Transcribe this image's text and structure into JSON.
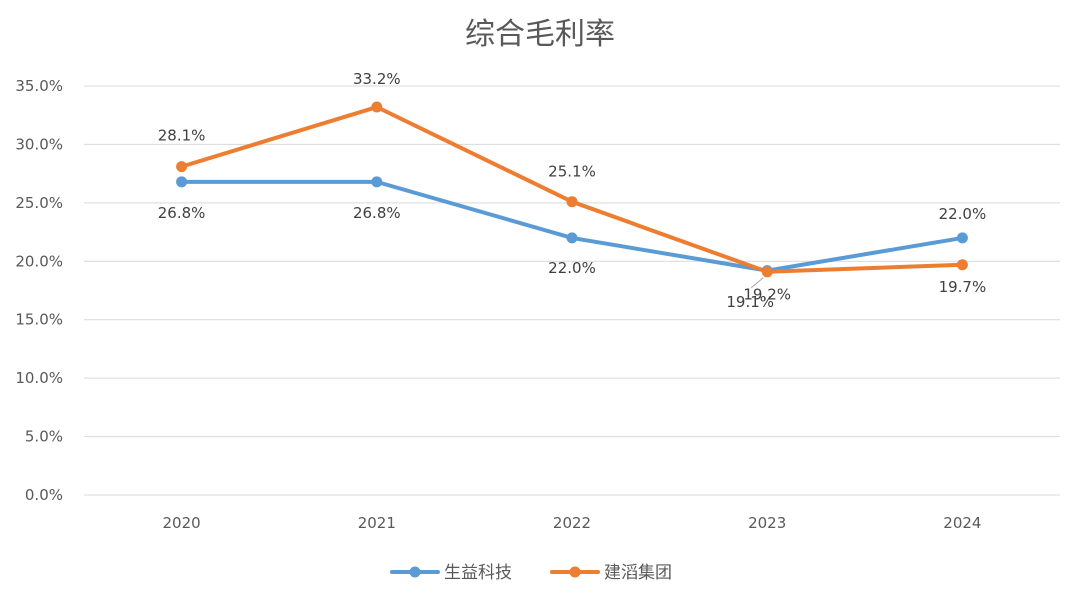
{
  "chart_data": {
    "type": "line",
    "title": "综合毛利率",
    "xlabel": "",
    "ylabel": "",
    "categories": [
      "2020",
      "2021",
      "2022",
      "2023",
      "2024"
    ],
    "y_ticks": [
      "0.0%",
      "5.0%",
      "10.0%",
      "15.0%",
      "20.0%",
      "25.0%",
      "30.0%",
      "35.0%"
    ],
    "ylim": [
      0,
      35
    ],
    "grid": true,
    "legend_position": "bottom",
    "series": [
      {
        "name": "生益科技",
        "color": "#5b9bd5",
        "values": [
          26.8,
          26.8,
          22.0,
          19.2,
          22.0
        ],
        "labels": [
          "26.8%",
          "26.8%",
          "22.0%",
          "19.2%",
          "22.0%"
        ]
      },
      {
        "name": "建滔集团",
        "color": "#ed7d31",
        "values": [
          28.1,
          33.2,
          25.1,
          19.1,
          19.7
        ],
        "labels": [
          "28.1%",
          "33.2%",
          "25.1%",
          "19.1%",
          "19.7%"
        ]
      }
    ]
  }
}
